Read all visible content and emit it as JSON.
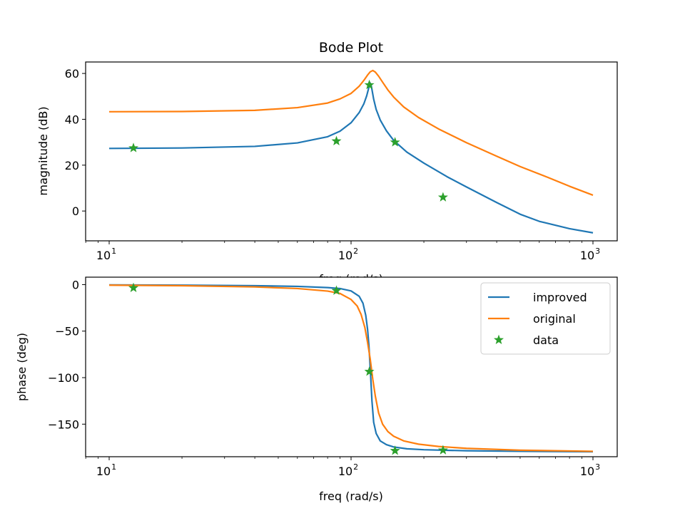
{
  "chart_data": [
    {
      "type": "line",
      "title": "Bode Plot",
      "xlabel": "freq (rad/s)",
      "ylabel": "magnitude (dB)",
      "xscale": "log",
      "xlim": [
        10,
        1000
      ],
      "ylim": [
        -13,
        65
      ],
      "x_ticks": [
        10,
        100,
        1000
      ],
      "x_tick_labels": [
        "10",
        "10",
        "10"
      ],
      "x_tick_exponents": [
        "1",
        "2",
        "3"
      ],
      "y_ticks": [
        0,
        20,
        40,
        60
      ],
      "y_tick_labels": [
        "0",
        "20",
        "40",
        "60"
      ],
      "grid": false,
      "series": [
        {
          "name": "improved",
          "color": "#1f77b4",
          "style": "line",
          "x": [
            10,
            20,
            40,
            60,
            80,
            90,
            100,
            108,
            113,
            116,
            118,
            119,
            120,
            121,
            122,
            124,
            127,
            132,
            140,
            150,
            170,
            200,
            250,
            300,
            400,
            500,
            600,
            800,
            1000
          ],
          "y": [
            27.3,
            27.5,
            28.2,
            29.7,
            32.4,
            34.8,
            38.5,
            42.9,
            46.8,
            50.2,
            53.2,
            55.0,
            55.8,
            55.0,
            53.0,
            48.8,
            44.3,
            39.7,
            35.0,
            30.8,
            25.7,
            20.9,
            14.9,
            10.5,
            3.7,
            -1.4,
            -4.5,
            -7.7,
            -9.5
          ]
        },
        {
          "name": "original",
          "color": "#ff7f0e",
          "style": "line",
          "x": [
            10,
            20,
            40,
            60,
            80,
            90,
            100,
            108,
            113,
            117,
            120,
            123,
            126,
            130,
            135,
            142,
            150,
            165,
            190,
            230,
            300,
            400,
            500,
            650,
            800,
            1000
          ],
          "y": [
            43.3,
            43.4,
            43.9,
            45.1,
            47.1,
            48.9,
            51.3,
            54.4,
            57.0,
            59.3,
            60.7,
            61.3,
            60.6,
            58.8,
            56.2,
            52.8,
            49.7,
            45.4,
            40.8,
            35.8,
            29.8,
            23.9,
            19.4,
            14.7,
            10.8,
            6.9
          ]
        },
        {
          "name": "data",
          "color": "#2ca02c",
          "style": "star",
          "x": [
            12.6,
            87,
            119,
            152,
            240
          ],
          "y": [
            27.5,
            30.5,
            55.0,
            30.0,
            6.0
          ]
        }
      ]
    },
    {
      "type": "line",
      "title": "",
      "xlabel": "freq (rad/s)",
      "ylabel": "phase (deg)",
      "xscale": "log",
      "xlim": [
        10,
        1000
      ],
      "ylim": [
        -185,
        8
      ],
      "x_ticks": [
        10,
        100,
        1000
      ],
      "x_tick_labels": [
        "10",
        "10",
        "10"
      ],
      "x_tick_exponents": [
        "1",
        "2",
        "3"
      ],
      "y_ticks": [
        0,
        -50,
        -100,
        -150
      ],
      "y_tick_labels": [
        "0",
        "−50",
        "−100",
        "−150"
      ],
      "grid": false,
      "legend_position": "top-right",
      "series": [
        {
          "name": "improved",
          "color": "#1f77b4",
          "style": "line",
          "x": [
            10,
            20,
            40,
            60,
            80,
            90,
            100,
            108,
            112,
            115,
            117,
            118.5,
            119.5,
            120.5,
            122,
            124,
            127,
            132,
            140,
            150,
            170,
            200,
            300,
            500,
            1000
          ],
          "y": [
            -0.3,
            -0.6,
            -1.2,
            -1.9,
            -3.2,
            -4.2,
            -6.8,
            -12.5,
            -20.0,
            -33.0,
            -48.0,
            -65.0,
            -82.0,
            -98.0,
            -125.0,
            -148.0,
            -160.0,
            -168.0,
            -172.0,
            -174.5,
            -176.5,
            -177.5,
            -178.6,
            -179.2,
            -179.7
          ]
        },
        {
          "name": "original",
          "color": "#ff7f0e",
          "style": "line",
          "x": [
            10,
            20,
            40,
            60,
            80,
            90,
            100,
            106,
            110,
            114,
            117,
            120,
            123,
            126,
            130,
            135,
            142,
            150,
            165,
            190,
            230,
            300,
            500,
            1000
          ],
          "y": [
            -0.6,
            -1.2,
            -2.5,
            -4.2,
            -7.0,
            -9.5,
            -16.0,
            -23.0,
            -32.0,
            -46.0,
            -62.0,
            -80.0,
            -102.0,
            -120.0,
            -138.0,
            -150.0,
            -158.0,
            -163.0,
            -168.0,
            -171.5,
            -174.0,
            -176.0,
            -178.0,
            -179.2
          ]
        },
        {
          "name": "data",
          "color": "#2ca02c",
          "style": "star",
          "x": [
            12.6,
            87,
            119,
            152,
            240
          ],
          "y": [
            -3.5,
            -6.5,
            -93.5,
            -178.5,
            -178.0
          ]
        }
      ]
    }
  ]
}
